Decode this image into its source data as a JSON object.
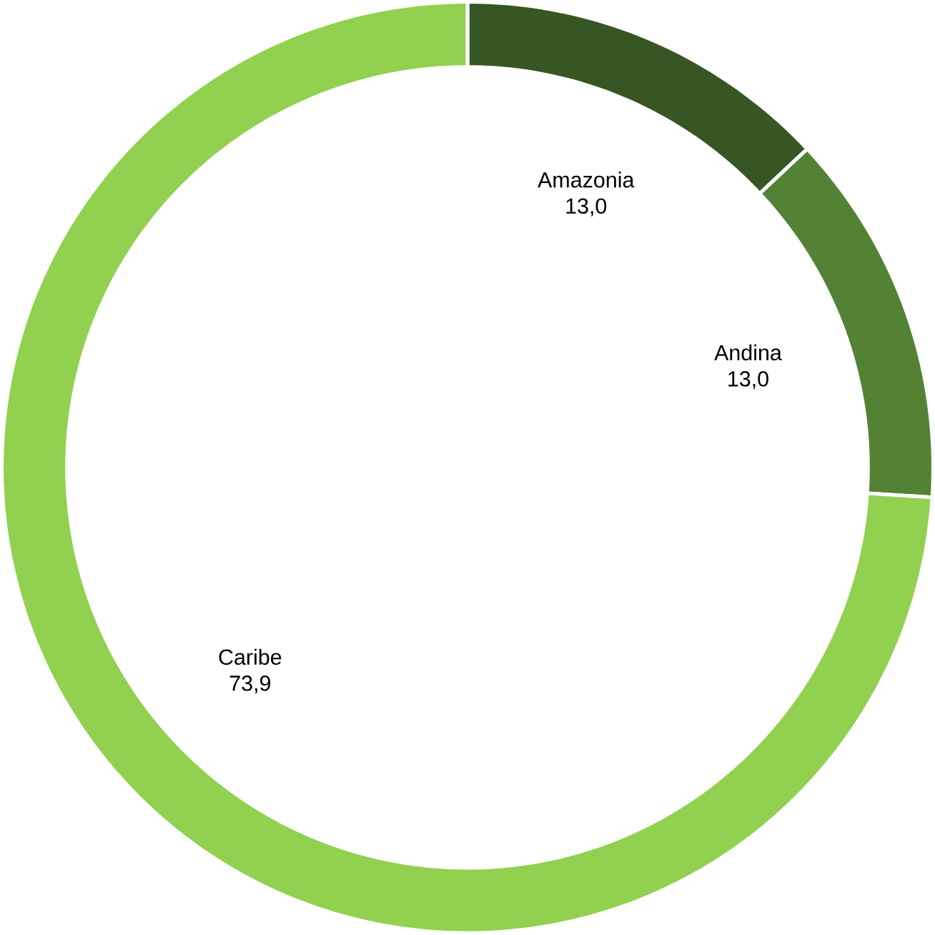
{
  "chart_data": {
    "type": "donut",
    "categories": [
      "Amazonia",
      "Andina",
      "Caribe"
    ],
    "values": [
      13.0,
      13.0,
      73.9
    ],
    "value_labels": [
      "13,0",
      "13,0",
      "73,9"
    ],
    "colors": [
      "#375623",
      "#548235",
      "#92d050"
    ]
  }
}
